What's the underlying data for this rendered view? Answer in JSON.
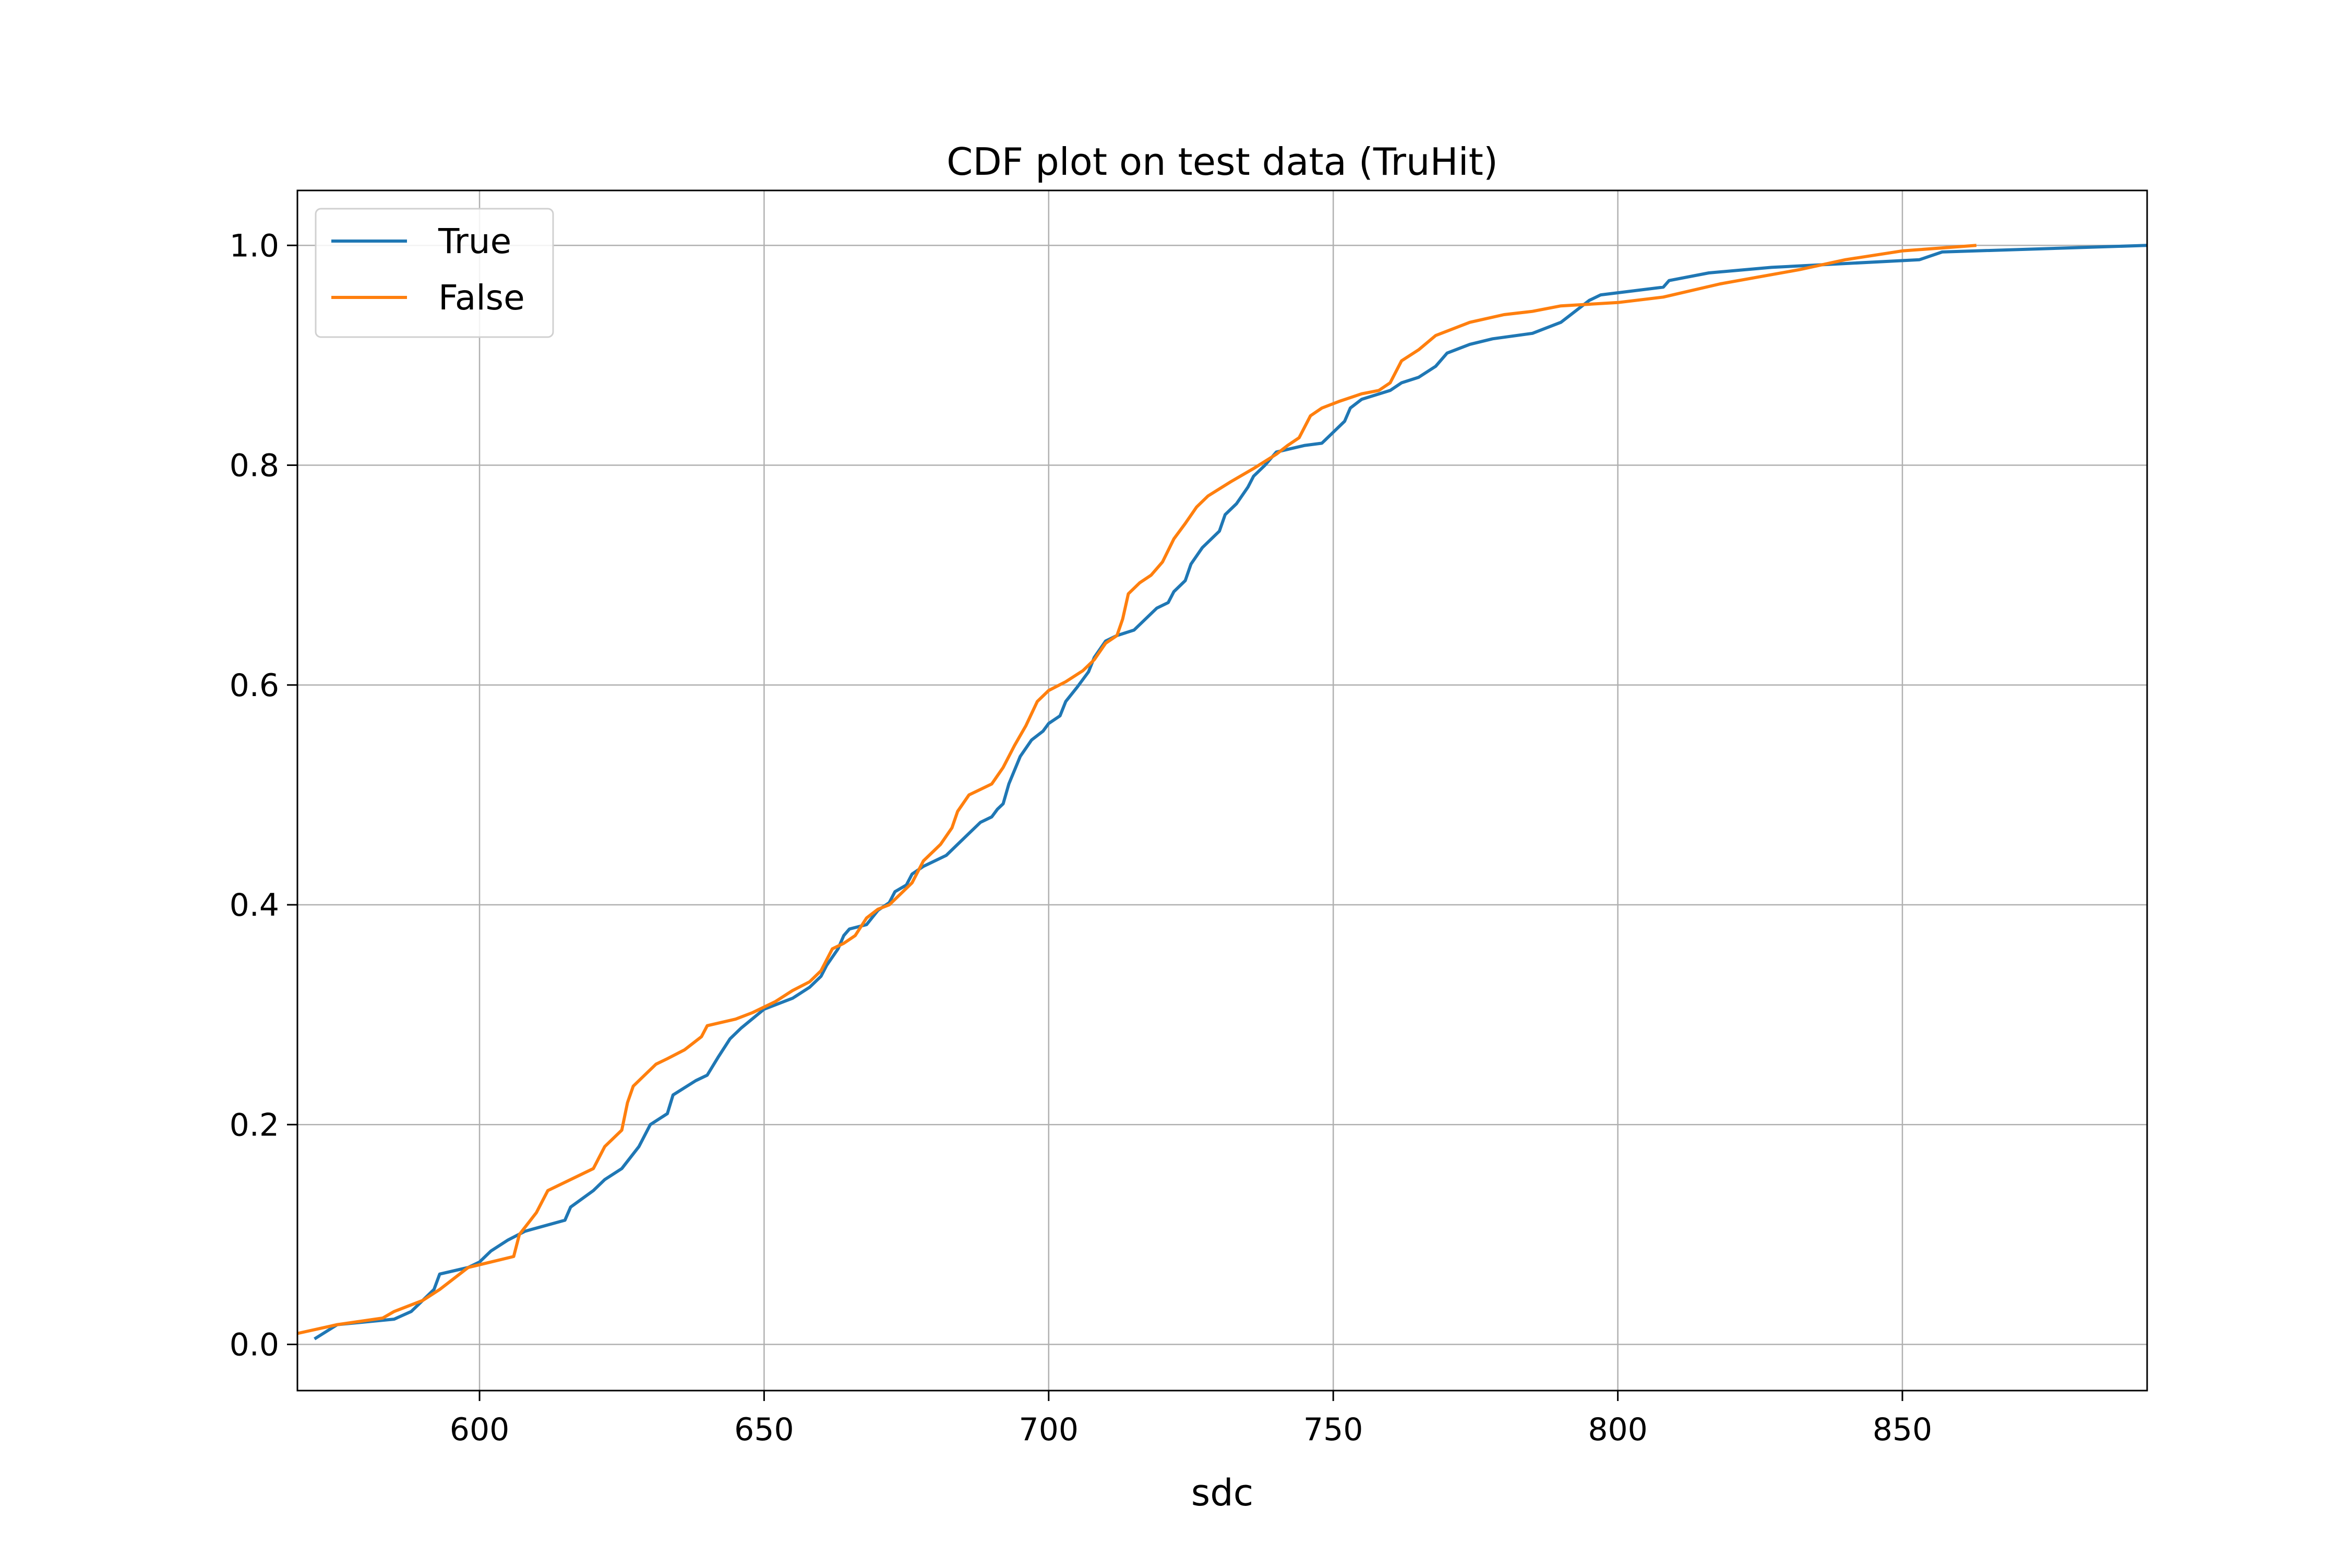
{
  "chart_data": {
    "type": "line",
    "title": "CDF plot on test data (TruHit)",
    "xlabel": "sdc",
    "ylabel": "",
    "xlim": [
      568,
      893
    ],
    "ylim": [
      -0.042,
      1.05
    ],
    "xticks": [
      600,
      650,
      700,
      750,
      800,
      850
    ],
    "yticks": [
      0.0,
      0.2,
      0.4,
      0.6,
      0.8,
      1.0
    ],
    "xtick_labels": [
      "600",
      "650",
      "700",
      "750",
      "800",
      "850"
    ],
    "ytick_labels": [
      "0.0",
      "0.2",
      "0.4",
      "0.6",
      "0.8",
      "1.0"
    ],
    "grid": true,
    "legend_position": "upper-left",
    "series": [
      {
        "name": "True",
        "color": "#1f77b4",
        "x": [
          571,
          575,
          585,
          588,
          592,
          593,
          598,
          600,
          602,
          605,
          608,
          615,
          616,
          620,
          622,
          625,
          628,
          630,
          633,
          634,
          638,
          640,
          642,
          644,
          646,
          650,
          655,
          658,
          660,
          661,
          663,
          664,
          665,
          668,
          670,
          672,
          673,
          675,
          676,
          678,
          680,
          682,
          684,
          686,
          688,
          690,
          691,
          692,
          693,
          695,
          697,
          699,
          700,
          702,
          703,
          705,
          707,
          708,
          710,
          712,
          715,
          718,
          719,
          721,
          722,
          724,
          725,
          727,
          730,
          731,
          733,
          735,
          736,
          738,
          740,
          745,
          748,
          750,
          752,
          753,
          755,
          760,
          762,
          765,
          768,
          770,
          774,
          778,
          785,
          790,
          795,
          797,
          808,
          809,
          816,
          827,
          853,
          857,
          893
        ],
        "y": [
          0.005,
          0.018,
          0.023,
          0.03,
          0.05,
          0.064,
          0.07,
          0.075,
          0.085,
          0.095,
          0.103,
          0.113,
          0.125,
          0.14,
          0.15,
          0.16,
          0.18,
          0.2,
          0.21,
          0.227,
          0.24,
          0.245,
          0.262,
          0.278,
          0.288,
          0.305,
          0.315,
          0.325,
          0.335,
          0.345,
          0.36,
          0.372,
          0.378,
          0.382,
          0.395,
          0.402,
          0.412,
          0.418,
          0.428,
          0.435,
          0.44,
          0.445,
          0.455,
          0.465,
          0.475,
          0.48,
          0.487,
          0.492,
          0.51,
          0.535,
          0.55,
          0.558,
          0.565,
          0.572,
          0.585,
          0.598,
          0.612,
          0.625,
          0.64,
          0.645,
          0.65,
          0.665,
          0.67,
          0.675,
          0.685,
          0.695,
          0.71,
          0.725,
          0.74,
          0.755,
          0.765,
          0.78,
          0.79,
          0.8,
          0.812,
          0.818,
          0.82,
          0.83,
          0.84,
          0.852,
          0.86,
          0.868,
          0.875,
          0.88,
          0.89,
          0.902,
          0.91,
          0.915,
          0.92,
          0.93,
          0.95,
          0.955,
          0.962,
          0.968,
          0.975,
          0.98,
          0.987,
          0.994,
          1.0
        ]
      },
      {
        "name": "False",
        "color": "#ff7f0e",
        "x": [
          568,
          575,
          583,
          585,
          590,
          593,
          598,
          602,
          606,
          607,
          610,
          612,
          620,
          622,
          625,
          626,
          627,
          629,
          631,
          633,
          636,
          639,
          640,
          645,
          648,
          652,
          655,
          658,
          660,
          662,
          664,
          666,
          668,
          670,
          672,
          674,
          676,
          678,
          681,
          683,
          684,
          686,
          688,
          690,
          692,
          694,
          696,
          698,
          700,
          703,
          706,
          708,
          710,
          712,
          713,
          714,
          716,
          718,
          720,
          722,
          724,
          726,
          728,
          732,
          736,
          740,
          742,
          744,
          746,
          748,
          751,
          755,
          758,
          760,
          762,
          765,
          768,
          774,
          780,
          785,
          790,
          800,
          808,
          818,
          832,
          840,
          850,
          863
        ],
        "y": [
          0.01,
          0.018,
          0.024,
          0.03,
          0.04,
          0.05,
          0.07,
          0.075,
          0.08,
          0.1,
          0.12,
          0.14,
          0.16,
          0.18,
          0.195,
          0.22,
          0.235,
          0.245,
          0.255,
          0.26,
          0.268,
          0.28,
          0.29,
          0.296,
          0.302,
          0.312,
          0.322,
          0.33,
          0.34,
          0.36,
          0.365,
          0.372,
          0.388,
          0.396,
          0.4,
          0.41,
          0.42,
          0.44,
          0.455,
          0.47,
          0.485,
          0.5,
          0.505,
          0.51,
          0.525,
          0.545,
          0.563,
          0.585,
          0.595,
          0.603,
          0.613,
          0.623,
          0.638,
          0.645,
          0.66,
          0.683,
          0.693,
          0.7,
          0.712,
          0.733,
          0.747,
          0.762,
          0.772,
          0.785,
          0.797,
          0.81,
          0.818,
          0.825,
          0.845,
          0.852,
          0.858,
          0.865,
          0.868,
          0.875,
          0.895,
          0.905,
          0.918,
          0.93,
          0.937,
          0.94,
          0.945,
          0.948,
          0.953,
          0.965,
          0.978,
          0.987,
          0.995,
          1.0
        ]
      }
    ]
  }
}
